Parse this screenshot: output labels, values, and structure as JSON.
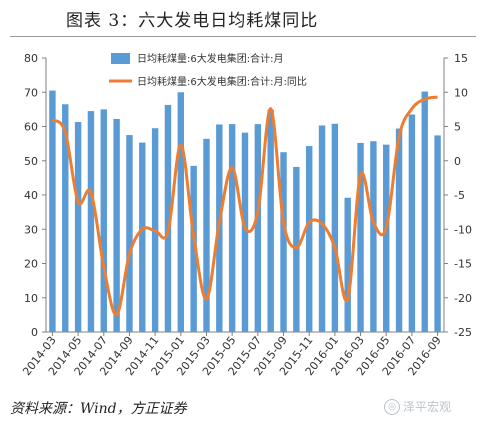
{
  "title": "图表 3：六大发电日均耗煤同比",
  "source": "资料来源：Wind，方正证券",
  "watermark": "泽平宏观",
  "colors": {
    "bar": "#5b9bd5",
    "line": "#ed7d31",
    "axis": "#808080",
    "text": "#333333"
  },
  "chart_data": {
    "type": "bar",
    "title": "",
    "legend": {
      "placement": "top-center"
    },
    "grid": false,
    "x_tick_labels": [
      "2014-03",
      "2014-05",
      "2014-07",
      "2014-09",
      "2014-11",
      "2015-01",
      "2015-03",
      "2015-05",
      "2015-07",
      "2015-09",
      "2015-11",
      "2016-01",
      "2016-03",
      "2016-05",
      "2016-07",
      "2016-09"
    ],
    "x": [
      "2014-03",
      "2014-04",
      "2014-05",
      "2014-06",
      "2014-07",
      "2014-08",
      "2014-09",
      "2014-10",
      "2014-11",
      "2014-12",
      "2015-01",
      "2015-02",
      "2015-03",
      "2015-04",
      "2015-05",
      "2015-06",
      "2015-07",
      "2015-08",
      "2015-09",
      "2015-10",
      "2015-11",
      "2015-12",
      "2016-01",
      "2016-02",
      "2016-03",
      "2016-04",
      "2016-05",
      "2016-06",
      "2016-07",
      "2016-08",
      "2016-09"
    ],
    "y_left": {
      "range": [
        0,
        80
      ],
      "ticks": [
        0,
        10,
        20,
        30,
        40,
        50,
        60,
        70,
        80
      ]
    },
    "y_right": {
      "range": [
        -25,
        15
      ],
      "ticks": [
        -25,
        -20,
        -15,
        -10,
        -5,
        0,
        5,
        10,
        15
      ]
    },
    "series": [
      {
        "name": "日均耗煤量:6大发电集团:合计:月",
        "type": "bar",
        "axis": "left",
        "values": [
          70.5,
          66.5,
          61.3,
          64.5,
          65.0,
          62.2,
          57.5,
          55.3,
          59.5,
          66.3,
          70.0,
          48.5,
          56.4,
          60.6,
          60.7,
          58.2,
          60.7,
          64.9,
          52.5,
          48.2,
          54.3,
          60.3,
          60.8,
          39.2,
          55.2,
          55.7,
          54.7,
          59.4,
          63.5,
          70.2,
          57.4
        ]
      },
      {
        "name": "日均耗煤量:6大发电集团:合计:月:同比",
        "type": "line",
        "axis": "right",
        "values": [
          6.0,
          4.2,
          -6.0,
          -4.6,
          -15.5,
          -22.5,
          -13.6,
          -10.0,
          -10.2,
          -10.4,
          2.3,
          -11.0,
          -20.2,
          -9.0,
          -1.0,
          -9.8,
          -7.5,
          7.6,
          -9.0,
          -12.7,
          -9.0,
          -9.2,
          -12.7,
          -20.2,
          -2.1,
          -9.0,
          -9.8,
          3.5,
          7.6,
          9.0,
          9.3
        ]
      }
    ]
  }
}
